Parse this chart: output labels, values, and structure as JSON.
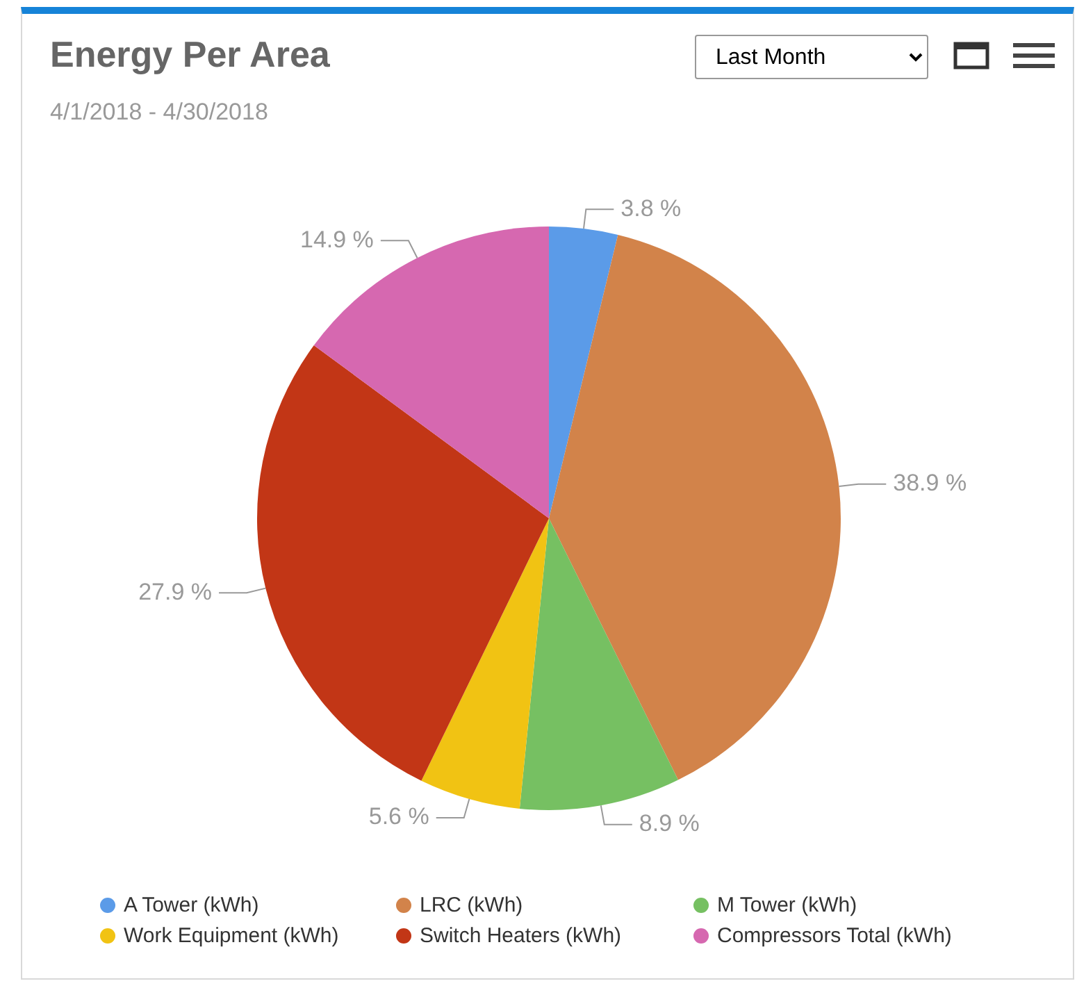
{
  "chart_data": {
    "type": "pie",
    "title": "Energy Per Area",
    "subtitle": "4/1/2018 - 4/30/2018",
    "annotations": [
      "Last Month"
    ],
    "categories": [
      "A Tower (kWh)",
      "LRC (kWh)",
      "M Tower (kWh)",
      "Work Equipment (kWh)",
      "Switch Heaters (kWh)",
      "Compressors Total (kWh)"
    ],
    "values": [
      3.8,
      38.9,
      8.9,
      5.6,
      27.9,
      14.9
    ],
    "colors": [
      "#5b9be8",
      "#d2834a",
      "#76c062",
      "#f1c313",
      "#c23616",
      "#d668b0"
    ],
    "value_labels": [
      "3.8 %",
      "38.9 %",
      "8.9 %",
      "5.6 %",
      "27.9 %",
      "14.9 %"
    ],
    "legend": "bottom"
  }
}
